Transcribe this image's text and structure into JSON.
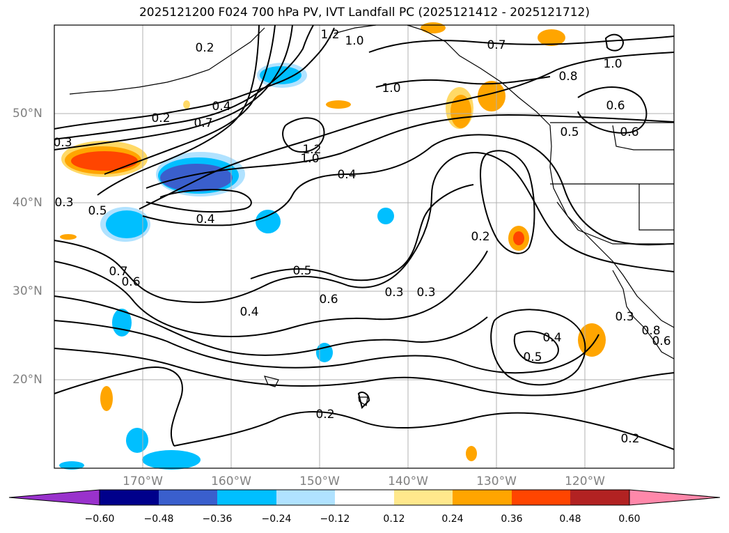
{
  "title": "2025121200 F024 700 hPa PV, IVT Landfall PC (2025121412 - 2025121712)",
  "lat_labels": [
    "50°N",
    "40°N",
    "30°N",
    "20°N"
  ],
  "lon_labels": [
    "170°W",
    "160°W",
    "150°W",
    "140°W",
    "130°W",
    "120°W"
  ],
  "contour_labels": [
    "0.2",
    "1.2",
    "1.0",
    "0.7",
    "1.0",
    "0.8",
    "1.0",
    "0.6",
    "0.6",
    "0.5",
    "0.2",
    "0.4",
    "0.7",
    "0.3",
    "1.2",
    "1.0",
    "0.4",
    "0.3",
    "0.5",
    "0.4",
    "0.2",
    "0.5",
    "0.6",
    "0.3",
    "0.3",
    "0.7",
    "0.6",
    "0.4",
    "0.4",
    "0.5",
    "0.3",
    "0.8",
    "0.6",
    "0.2",
    "0.2"
  ],
  "colorbar": {
    "tick_labels": [
      "−0.60",
      "−0.48",
      "−0.36",
      "−0.24",
      "−0.12",
      "0.12",
      "0.24",
      "0.36",
      "0.48",
      "0.60"
    ],
    "colors": [
      "#9932cc",
      "#00008b",
      "#3a5fcd",
      "#00bfff",
      "#b0e2ff",
      "#ffffff",
      "#ffe88c",
      "#ffa500",
      "#ff4500",
      "#b22222",
      "#ff88aa"
    ]
  }
}
